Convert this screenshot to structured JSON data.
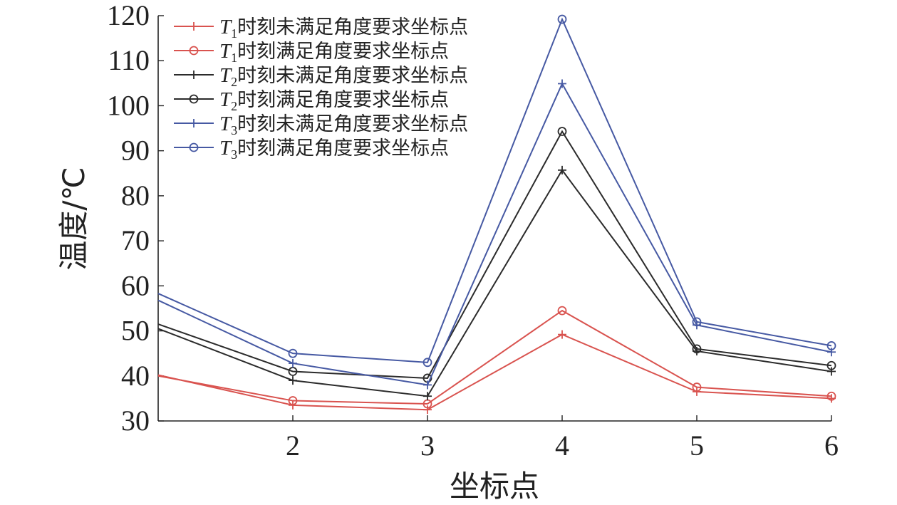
{
  "chart_data": {
    "type": "line",
    "xlabel": "坐标点",
    "ylabel": "温度/℃",
    "xlim": [
      1,
      6
    ],
    "ylim": [
      30,
      120
    ],
    "x_ticks": [
      "2",
      "3",
      "4",
      "5",
      "6"
    ],
    "y_ticks": [
      "30",
      "40",
      "50",
      "60",
      "70",
      "80",
      "90",
      "100",
      "110",
      "120"
    ],
    "x": [
      1,
      2,
      3,
      4,
      5,
      6
    ],
    "legend_position": "top-left",
    "series": [
      {
        "name": "T1时刻未满足角度要求坐标点",
        "legend_prefix": "T",
        "legend_sub": "1",
        "legend_text": "时刻未满足角度要求坐标点",
        "color": "#d9534f",
        "marker": "plus",
        "values": [
          40.2,
          33.5,
          32.5,
          49.2,
          36.5,
          35.0
        ]
      },
      {
        "name": "T1时刻满足角度要求坐标点",
        "legend_prefix": "T",
        "legend_sub": "1",
        "legend_text": "时刻满足角度要求坐标点",
        "color": "#d9534f",
        "marker": "circle",
        "values": [
          40.0,
          34.5,
          33.8,
          54.5,
          37.5,
          35.5
        ]
      },
      {
        "name": "T2时刻未满足角度要求坐标点",
        "legend_prefix": "T",
        "legend_sub": "2",
        "legend_text": "时刻未满足角度要求坐标点",
        "color": "#2b2b2b",
        "marker": "plus",
        "values": [
          50.5,
          39.0,
          35.5,
          85.7,
          45.5,
          41.0
        ]
      },
      {
        "name": "T2时刻满足角度要求坐标点",
        "legend_prefix": "T",
        "legend_sub": "2",
        "legend_text": "时刻满足角度要求坐标点",
        "color": "#2b2b2b",
        "marker": "circle",
        "values": [
          51.5,
          41.0,
          39.5,
          94.3,
          46.0,
          42.3
        ]
      },
      {
        "name": "T3时刻未满足角度要求坐标点",
        "legend_prefix": "T",
        "legend_sub": "3",
        "legend_text": "时刻未满足角度要求坐标点",
        "color": "#4659a3",
        "marker": "plus",
        "values": [
          56.8,
          42.8,
          38.0,
          104.9,
          51.3,
          45.3
        ]
      },
      {
        "name": "T3时刻满足角度要求坐标点",
        "legend_prefix": "T",
        "legend_sub": "3",
        "legend_text": "时刻满足角度要求坐标点",
        "color": "#4659a3",
        "marker": "circle",
        "values": [
          58.3,
          45.0,
          43.0,
          119.2,
          52.0,
          46.7
        ]
      }
    ]
  }
}
